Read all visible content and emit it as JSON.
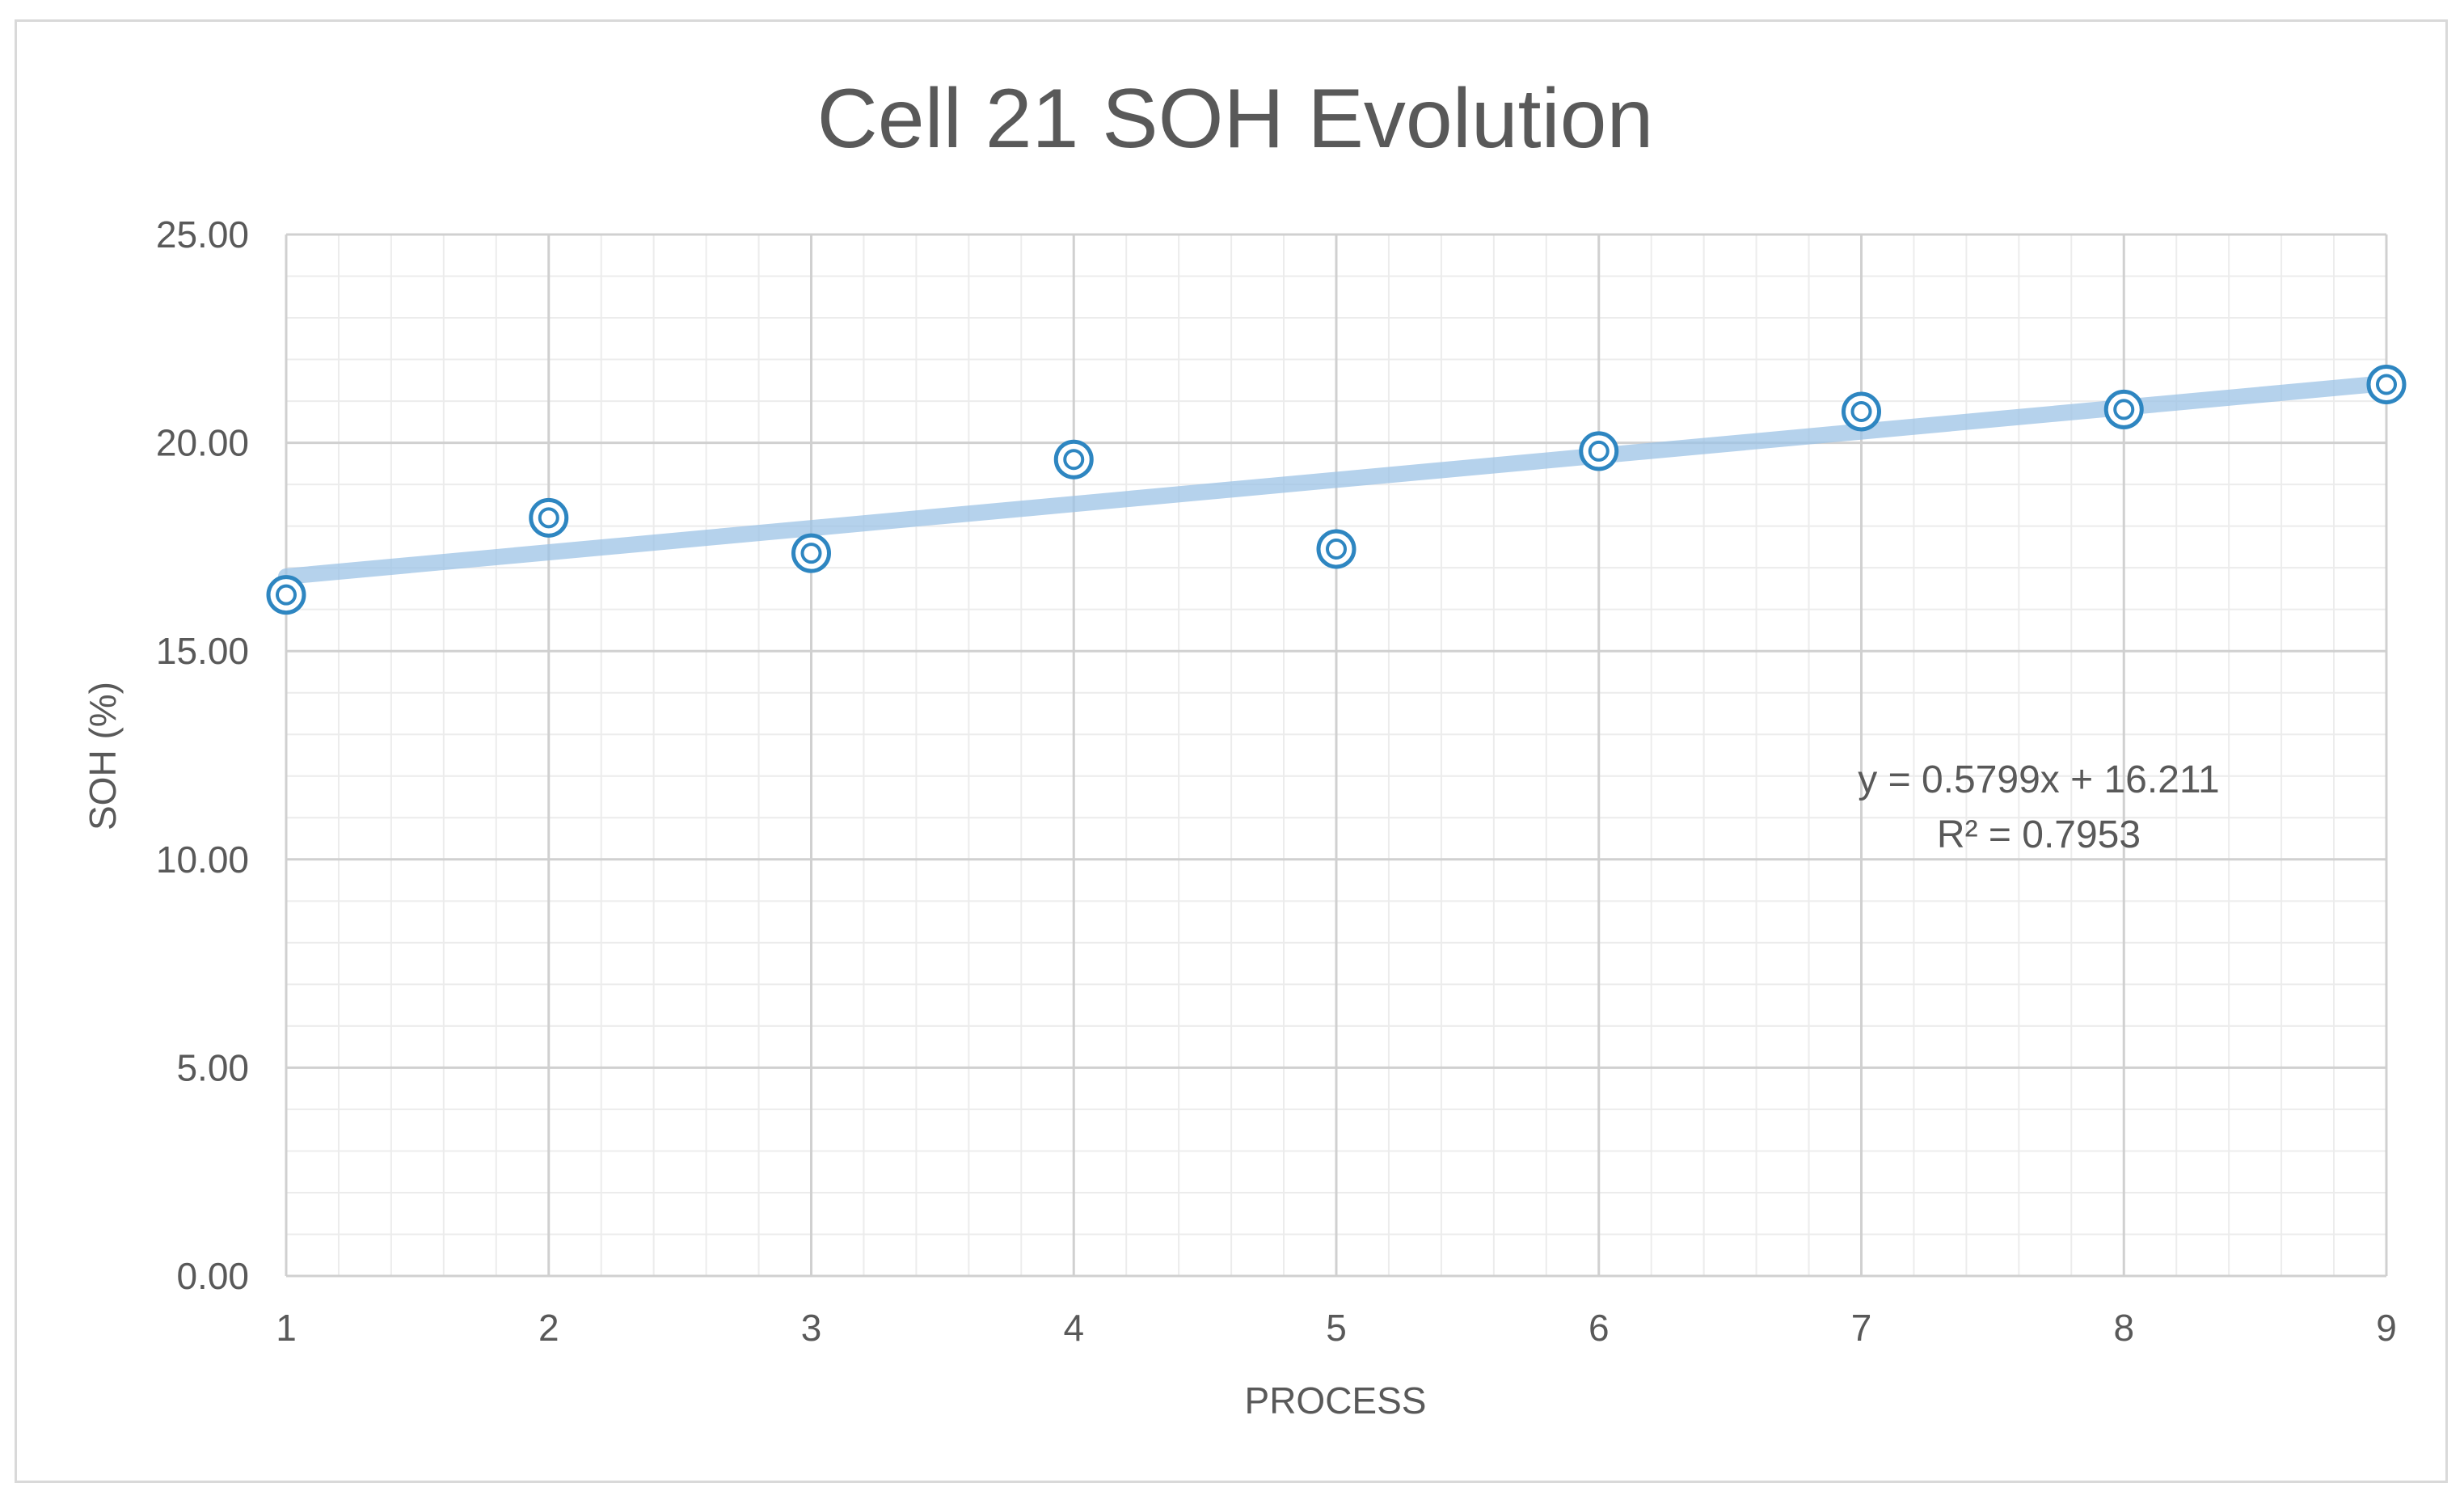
{
  "chart_data": {
    "type": "scatter",
    "title": "Cell  21 SOH Evolution",
    "xlabel": "PROCESS",
    "ylabel": "SOH (%)",
    "xlim": [
      1,
      9
    ],
    "ylim": [
      0,
      25
    ],
    "x_ticks": [
      1,
      2,
      3,
      4,
      5,
      6,
      7,
      8,
      9
    ],
    "y_ticks": [
      "0.00",
      "5.00",
      "10.00",
      "15.00",
      "20.00",
      "25.00"
    ],
    "y_tick_values": [
      0,
      5,
      10,
      15,
      20,
      25
    ],
    "x_minor_step": 0.2,
    "y_minor_step": 1,
    "grid": true,
    "series": [
      {
        "name": "SOH",
        "x": [
          1,
          2,
          3,
          4,
          5,
          6,
          7,
          8,
          9
        ],
        "y": [
          16.35,
          18.2,
          17.35,
          19.6,
          17.45,
          19.8,
          20.75,
          20.8,
          21.4
        ]
      }
    ],
    "trendline": {
      "type": "linear",
      "slope": 0.5799,
      "intercept": 16.211,
      "equation": "y = 0.5799x + 16.211",
      "r_squared": "R² = 0.7953"
    },
    "colors": {
      "marker": "#2e86c1",
      "trendline": "#9dc3e6",
      "major_grid": "#d0d0d0",
      "minor_grid": "#ececec",
      "text": "#595959"
    }
  }
}
